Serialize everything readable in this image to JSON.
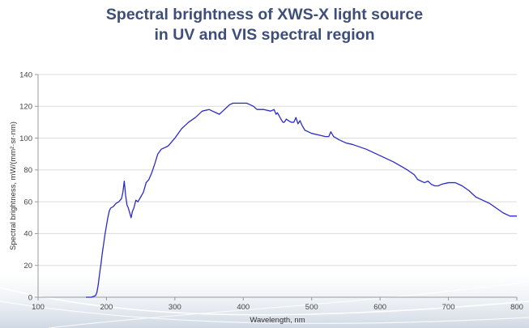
{
  "title": {
    "line1": "Spectral brightness of XWS-X light source",
    "line2": "in UV and VIS spectral region"
  },
  "colors": {
    "title": "#3d4e79",
    "series": "#2b2bc9",
    "grid": "#dcdcdc",
    "axis": "#9a9a9a"
  },
  "chart_data": {
    "type": "line",
    "title": "Spectral brightness of XWS-X light source in UV and VIS spectral region",
    "xlabel": "Wavelength, nm",
    "ylabel": "Spectral brightness, mW/(mm²·sr·nm)",
    "xlim": [
      100,
      800
    ],
    "ylim": [
      0,
      140
    ],
    "xticks": [
      100,
      200,
      300,
      400,
      500,
      600,
      700,
      800
    ],
    "yticks": [
      0,
      20,
      40,
      60,
      80,
      100,
      120,
      140
    ],
    "grid": "horizontal",
    "legend": "none",
    "series": [
      {
        "name": "XWS-X",
        "x": [
          170,
          178,
          184,
          186,
          188,
          190,
          192,
          194,
          196,
          198,
          200,
          202,
          204,
          206,
          210,
          214,
          218,
          222,
          224,
          226,
          228,
          230,
          232,
          236,
          238,
          240,
          243,
          246,
          250,
          254,
          258,
          262,
          266,
          270,
          275,
          280,
          290,
          300,
          310,
          320,
          330,
          340,
          350,
          355,
          360,
          365,
          370,
          375,
          380,
          385,
          390,
          395,
          400,
          405,
          410,
          415,
          420,
          430,
          440,
          445,
          448,
          450,
          455,
          458,
          460,
          463,
          466,
          470,
          474,
          477,
          480,
          483,
          486,
          490,
          495,
          500,
          510,
          520,
          525,
          528,
          532,
          540,
          550,
          560,
          580,
          600,
          620,
          640,
          650,
          655,
          660,
          665,
          670,
          675,
          680,
          685,
          690,
          700,
          710,
          720,
          730,
          740,
          750,
          760,
          770,
          780,
          790,
          800
        ],
        "y": [
          0,
          0,
          1,
          3,
          8,
          15,
          21,
          28,
          34,
          40,
          45,
          50,
          54,
          56,
          57,
          59,
          60,
          62,
          66,
          73,
          64,
          58,
          56,
          50,
          54,
          56,
          61,
          60,
          63,
          66,
          72,
          74,
          78,
          83,
          90,
          93,
          95,
          100,
          106,
          110,
          113,
          117,
          118,
          117,
          116,
          115,
          117,
          119,
          121,
          122,
          122,
          122,
          122,
          122,
          121,
          120,
          118,
          118,
          117,
          118,
          115,
          116,
          112,
          110,
          110,
          112,
          111,
          110,
          110,
          113,
          109,
          111,
          108,
          105,
          104,
          103,
          102,
          101,
          101,
          104,
          101,
          99,
          97,
          96,
          93,
          89,
          85,
          80,
          77,
          74,
          73,
          72,
          73,
          71,
          70,
          70,
          71,
          72,
          72,
          70,
          67,
          63,
          61,
          59,
          56,
          53,
          51,
          51
        ]
      }
    ]
  }
}
